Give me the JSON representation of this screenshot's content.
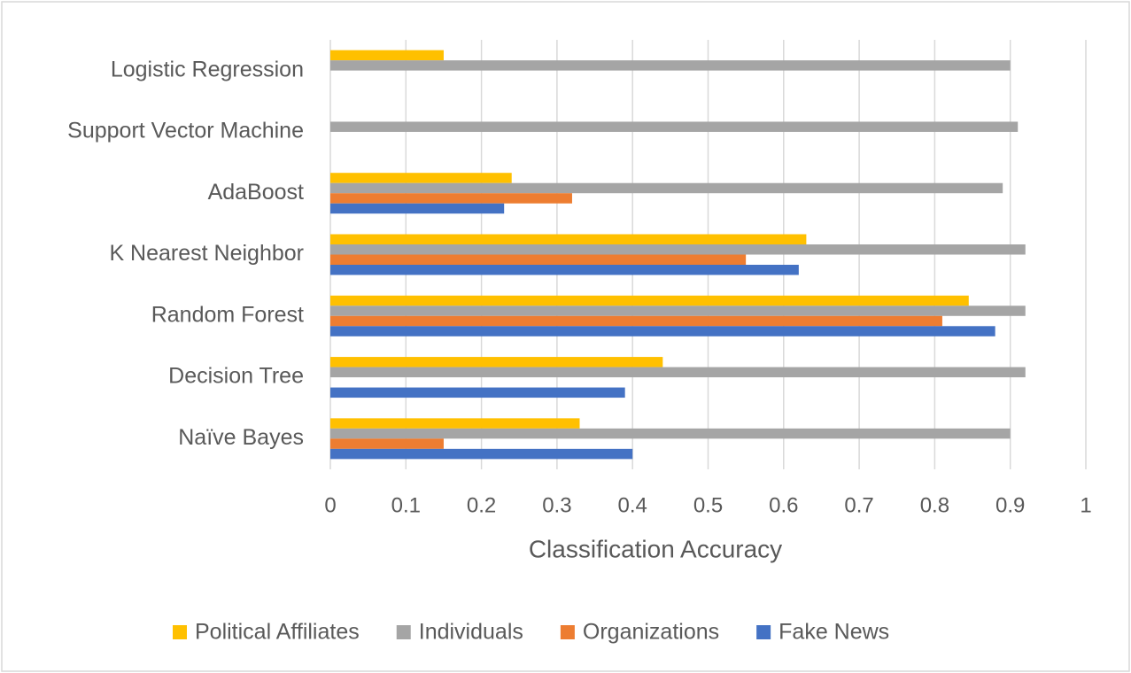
{
  "chart_data": {
    "type": "bar",
    "orientation": "horizontal",
    "xlabel": "Classification Accuracy",
    "categories": [
      "Logistic Regression",
      "Support Vector Machine",
      "AdaBoost",
      "K Nearest Neighbor",
      "Random Forest",
      "Decision Tree",
      "Naïve Bayes"
    ],
    "series": [
      {
        "name": "Political Affiliates",
        "color": "#ffc000",
        "values": [
          0.15,
          null,
          0.24,
          0.63,
          0.845,
          0.44,
          0.33
        ]
      },
      {
        "name": "Individuals",
        "color": "#a5a5a5",
        "values": [
          0.9,
          0.91,
          0.89,
          0.92,
          0.92,
          0.92,
          0.9
        ]
      },
      {
        "name": "Organizations",
        "color": "#ed7d31",
        "values": [
          null,
          null,
          0.32,
          0.55,
          0.81,
          null,
          0.15
        ]
      },
      {
        "name": "Fake News",
        "color": "#4472c4",
        "values": [
          null,
          null,
          0.23,
          0.62,
          0.88,
          0.39,
          0.4
        ]
      }
    ],
    "xlim": [
      0,
      1
    ],
    "xticks": [
      0,
      0.1,
      0.2,
      0.3,
      0.4,
      0.5,
      0.6,
      0.7,
      0.8,
      0.9,
      1
    ],
    "grid": true,
    "legend": "bottom"
  }
}
